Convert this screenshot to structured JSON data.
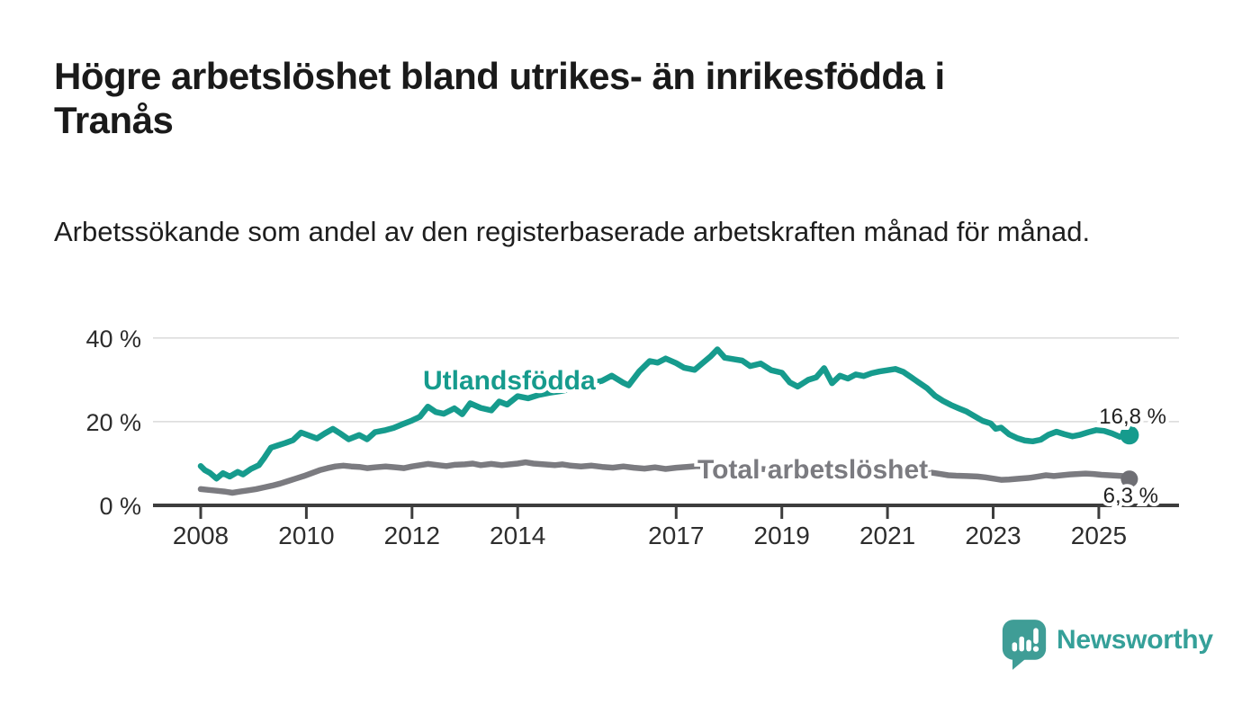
{
  "header": {
    "title": "Högre arbetslöshet bland utrikes- än inrikesfödda i Tranås",
    "subtitle": "Arbetssökande som andel av den registerbaserade arbetskraften månad för månad."
  },
  "footer": {
    "brand": "Newsworthy",
    "brand_color": "#35a099",
    "logo_mark_color": "#3f9d96"
  },
  "chart_data": {
    "type": "line",
    "title": "Högre arbetslöshet bland utrikes- än inrikesfödda i Tranås",
    "xlabel": "",
    "ylabel": "",
    "grid": "horizontal-only",
    "x_range": [
      2007.9,
      2026.5
    ],
    "ylim": [
      0,
      42
    ],
    "x_ticks": [
      {
        "value": 2008,
        "label": "2008"
      },
      {
        "value": 2010,
        "label": "2010"
      },
      {
        "value": 2012,
        "label": "2012"
      },
      {
        "value": 2014,
        "label": "2014"
      },
      {
        "value": 2017,
        "label": "2017"
      },
      {
        "value": 2019,
        "label": "2019"
      },
      {
        "value": 2021,
        "label": "2021"
      },
      {
        "value": 2023,
        "label": "2023"
      },
      {
        "value": 2025,
        "label": "2025"
      }
    ],
    "y_ticks": [
      {
        "value": 0,
        "label": "0 %"
      },
      {
        "value": 20,
        "label": "20 %"
      },
      {
        "value": 40,
        "label": "40 %"
      }
    ],
    "axis_color": "#3d3d3d",
    "gridline_color": "#d9d9d9",
    "series": [
      {
        "name": "Utlandsfödda",
        "color": "#169b8d",
        "dot_color": "#169b8d",
        "end_value": 16.8,
        "end_label": "16,8 %",
        "points": [
          [
            2008.0,
            9.4
          ],
          [
            2008.08,
            8.4
          ],
          [
            2008.17,
            7.8
          ],
          [
            2008.3,
            6.4
          ],
          [
            2008.42,
            7.7
          ],
          [
            2008.55,
            6.9
          ],
          [
            2008.7,
            8.0
          ],
          [
            2008.8,
            7.4
          ],
          [
            2008.95,
            8.7
          ],
          [
            2009.1,
            9.6
          ],
          [
            2009.2,
            11.3
          ],
          [
            2009.33,
            13.8
          ],
          [
            2009.45,
            14.3
          ],
          [
            2009.6,
            14.9
          ],
          [
            2009.75,
            15.6
          ],
          [
            2009.9,
            17.4
          ],
          [
            2010.05,
            16.7
          ],
          [
            2010.2,
            16.0
          ],
          [
            2010.35,
            17.2
          ],
          [
            2010.5,
            18.3
          ],
          [
            2010.65,
            17.1
          ],
          [
            2010.8,
            15.8
          ],
          [
            2011.0,
            16.8
          ],
          [
            2011.15,
            15.8
          ],
          [
            2011.3,
            17.5
          ],
          [
            2011.5,
            18.0
          ],
          [
            2011.65,
            18.5
          ],
          [
            2011.8,
            19.3
          ],
          [
            2012.0,
            20.3
          ],
          [
            2012.15,
            21.2
          ],
          [
            2012.3,
            23.6
          ],
          [
            2012.45,
            22.3
          ],
          [
            2012.6,
            21.9
          ],
          [
            2012.8,
            23.2
          ],
          [
            2012.95,
            21.8
          ],
          [
            2013.1,
            24.4
          ],
          [
            2013.3,
            23.3
          ],
          [
            2013.5,
            22.7
          ],
          [
            2013.65,
            24.8
          ],
          [
            2013.8,
            24.1
          ],
          [
            2014.0,
            26.1
          ],
          [
            2014.2,
            25.6
          ],
          [
            2014.4,
            26.4
          ],
          [
            2014.6,
            26.9
          ],
          [
            2014.8,
            27.3
          ],
          [
            2015.0,
            27.8
          ],
          [
            2015.2,
            28.3
          ],
          [
            2015.4,
            29.2
          ],
          [
            2015.6,
            29.8
          ],
          [
            2015.78,
            31.0
          ],
          [
            2016.0,
            29.3
          ],
          [
            2016.1,
            28.7
          ],
          [
            2016.3,
            32.0
          ],
          [
            2016.5,
            34.5
          ],
          [
            2016.65,
            34.1
          ],
          [
            2016.8,
            35.1
          ],
          [
            2017.0,
            34.0
          ],
          [
            2017.15,
            32.9
          ],
          [
            2017.35,
            32.4
          ],
          [
            2017.5,
            34.0
          ],
          [
            2017.65,
            35.6
          ],
          [
            2017.78,
            37.3
          ],
          [
            2017.92,
            35.3
          ],
          [
            2018.1,
            34.9
          ],
          [
            2018.25,
            34.6
          ],
          [
            2018.4,
            33.3
          ],
          [
            2018.6,
            33.9
          ],
          [
            2018.8,
            32.3
          ],
          [
            2019.0,
            31.7
          ],
          [
            2019.15,
            29.4
          ],
          [
            2019.3,
            28.4
          ],
          [
            2019.5,
            30.0
          ],
          [
            2019.65,
            30.6
          ],
          [
            2019.8,
            32.8
          ],
          [
            2019.95,
            29.2
          ],
          [
            2020.1,
            31.0
          ],
          [
            2020.25,
            30.3
          ],
          [
            2020.4,
            31.3
          ],
          [
            2020.55,
            30.9
          ],
          [
            2020.7,
            31.6
          ],
          [
            2020.85,
            32.0
          ],
          [
            2021.0,
            32.3
          ],
          [
            2021.15,
            32.6
          ],
          [
            2021.3,
            31.9
          ],
          [
            2021.45,
            30.6
          ],
          [
            2021.6,
            29.3
          ],
          [
            2021.75,
            28.0
          ],
          [
            2021.9,
            26.2
          ],
          [
            2022.05,
            25.0
          ],
          [
            2022.2,
            24.0
          ],
          [
            2022.35,
            23.2
          ],
          [
            2022.5,
            22.4
          ],
          [
            2022.65,
            21.3
          ],
          [
            2022.8,
            20.2
          ],
          [
            2022.95,
            19.6
          ],
          [
            2023.05,
            18.3
          ],
          [
            2023.15,
            18.6
          ],
          [
            2023.3,
            17.0
          ],
          [
            2023.45,
            16.1
          ],
          [
            2023.6,
            15.5
          ],
          [
            2023.75,
            15.3
          ],
          [
            2023.9,
            15.7
          ],
          [
            2024.05,
            16.9
          ],
          [
            2024.2,
            17.6
          ],
          [
            2024.35,
            17.0
          ],
          [
            2024.5,
            16.5
          ],
          [
            2024.65,
            16.9
          ],
          [
            2024.8,
            17.5
          ],
          [
            2024.95,
            18.0
          ],
          [
            2025.1,
            17.8
          ],
          [
            2025.25,
            17.2
          ],
          [
            2025.4,
            16.4
          ],
          [
            2025.58,
            16.8
          ]
        ]
      },
      {
        "name": "Total arbetslöshet",
        "color": "#7b7b80",
        "dot_color": "#6f6f74",
        "end_value": 6.3,
        "end_label": "6,3 %",
        "points": [
          [
            2008.0,
            3.9
          ],
          [
            2008.15,
            3.7
          ],
          [
            2008.3,
            3.5
          ],
          [
            2008.45,
            3.3
          ],
          [
            2008.6,
            3.0
          ],
          [
            2008.75,
            3.3
          ],
          [
            2008.9,
            3.6
          ],
          [
            2009.05,
            3.9
          ],
          [
            2009.2,
            4.3
          ],
          [
            2009.35,
            4.7
          ],
          [
            2009.5,
            5.2
          ],
          [
            2009.65,
            5.8
          ],
          [
            2009.8,
            6.4
          ],
          [
            2009.95,
            7.0
          ],
          [
            2010.1,
            7.7
          ],
          [
            2010.25,
            8.4
          ],
          [
            2010.4,
            8.9
          ],
          [
            2010.55,
            9.3
          ],
          [
            2010.7,
            9.5
          ],
          [
            2010.85,
            9.3
          ],
          [
            2011.0,
            9.2
          ],
          [
            2011.15,
            8.9
          ],
          [
            2011.3,
            9.1
          ],
          [
            2011.5,
            9.3
          ],
          [
            2011.7,
            9.1
          ],
          [
            2011.85,
            8.9
          ],
          [
            2012.0,
            9.3
          ],
          [
            2012.15,
            9.6
          ],
          [
            2012.3,
            9.9
          ],
          [
            2012.5,
            9.6
          ],
          [
            2012.65,
            9.4
          ],
          [
            2012.8,
            9.7
          ],
          [
            2013.0,
            9.8
          ],
          [
            2013.15,
            10.0
          ],
          [
            2013.3,
            9.6
          ],
          [
            2013.5,
            9.9
          ],
          [
            2013.7,
            9.6
          ],
          [
            2013.85,
            9.8
          ],
          [
            2014.0,
            10.0
          ],
          [
            2014.15,
            10.3
          ],
          [
            2014.3,
            10.0
          ],
          [
            2014.5,
            9.8
          ],
          [
            2014.7,
            9.6
          ],
          [
            2014.85,
            9.8
          ],
          [
            2015.0,
            9.5
          ],
          [
            2015.2,
            9.3
          ],
          [
            2015.4,
            9.5
          ],
          [
            2015.6,
            9.2
          ],
          [
            2015.8,
            9.0
          ],
          [
            2016.0,
            9.3
          ],
          [
            2016.2,
            9.0
          ],
          [
            2016.4,
            8.8
          ],
          [
            2016.6,
            9.1
          ],
          [
            2016.8,
            8.7
          ],
          [
            2017.0,
            9.0
          ],
          [
            2017.2,
            9.2
          ],
          [
            2017.4,
            9.4
          ],
          [
            2017.6,
            9.3
          ],
          [
            2017.8,
            9.4
          ],
          [
            2018.0,
            9.2
          ],
          [
            2018.25,
            9.0
          ],
          [
            2018.5,
            8.8
          ],
          [
            2018.75,
            8.6
          ],
          [
            2019.0,
            8.4
          ],
          [
            2019.25,
            8.3
          ],
          [
            2019.5,
            8.5
          ],
          [
            2019.75,
            8.7
          ],
          [
            2020.0,
            8.9
          ],
          [
            2020.25,
            9.2
          ],
          [
            2020.5,
            9.5
          ],
          [
            2020.75,
            9.3
          ],
          [
            2021.0,
            9.0
          ],
          [
            2021.25,
            8.7
          ],
          [
            2021.5,
            8.4
          ],
          [
            2021.75,
            8.0
          ],
          [
            2022.0,
            7.5
          ],
          [
            2022.15,
            7.2
          ],
          [
            2022.3,
            7.1
          ],
          [
            2022.5,
            7.0
          ],
          [
            2022.7,
            6.9
          ],
          [
            2022.85,
            6.7
          ],
          [
            2023.0,
            6.4
          ],
          [
            2023.15,
            6.1
          ],
          [
            2023.3,
            6.2
          ],
          [
            2023.5,
            6.4
          ],
          [
            2023.7,
            6.6
          ],
          [
            2023.85,
            6.9
          ],
          [
            2024.0,
            7.2
          ],
          [
            2024.15,
            7.0
          ],
          [
            2024.3,
            7.2
          ],
          [
            2024.45,
            7.4
          ],
          [
            2024.6,
            7.5
          ],
          [
            2024.75,
            7.6
          ],
          [
            2024.9,
            7.5
          ],
          [
            2025.05,
            7.3
          ],
          [
            2025.2,
            7.2
          ],
          [
            2025.35,
            7.1
          ],
          [
            2025.45,
            7.0
          ],
          [
            2025.58,
            6.3
          ]
        ]
      }
    ]
  }
}
